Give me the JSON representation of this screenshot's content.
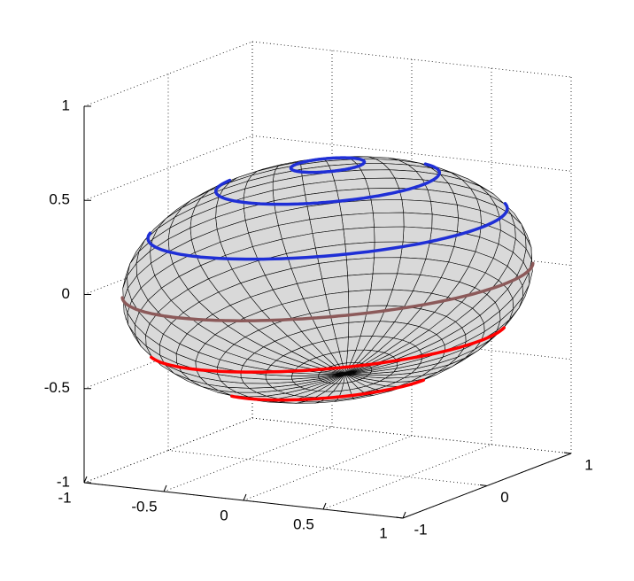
{
  "chart_data": {
    "type": "surface3d",
    "xlim": [
      -1,
      1
    ],
    "ylim": [
      -1,
      1
    ],
    "zlim": [
      -1,
      1
    ],
    "xticks": [
      -1,
      -0.5,
      0,
      0.5,
      1
    ],
    "yticks": [
      -1,
      0,
      1
    ],
    "zticks": [
      -1,
      -0.5,
      0,
      0.5,
      1
    ],
    "grid": true,
    "surface": {
      "radii": [
        1.35,
        0.85,
        0.62
      ],
      "axis_azimuth": 71.5,
      "color": "#d9d9d9",
      "edge_color": "#000000"
    },
    "axis_line": {
      "length": 1.55,
      "color": "#000000"
    },
    "rings": [
      {
        "z": 0.61,
        "color": "#1f2fd6"
      },
      {
        "z": 0.52,
        "color": "#1f2fd6"
      },
      {
        "z": 0.3,
        "color": "#1f2fd6"
      },
      {
        "z": 0,
        "color": "#8c5a5a"
      },
      {
        "z": -0.3,
        "color": "#ff0000"
      },
      {
        "z": -0.52,
        "color": "#ff0000"
      }
    ]
  }
}
